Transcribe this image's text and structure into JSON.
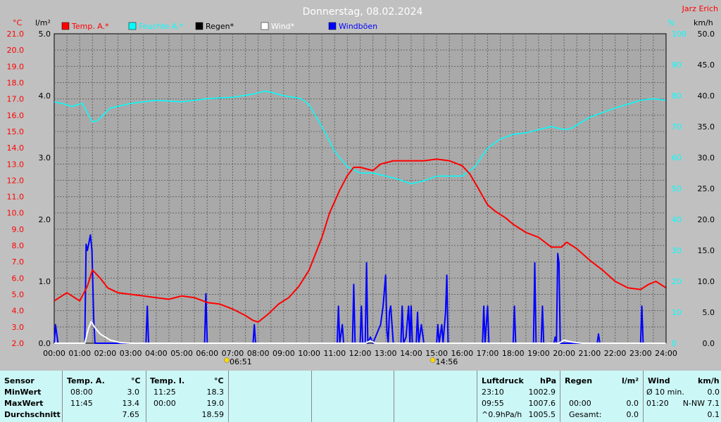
{
  "header": {
    "title": "Donnerstag, 08.02.2024",
    "author": "Jarz Erich"
  },
  "chart_data": {
    "type": "line",
    "title": "Donnerstag, 08.02.2024",
    "legend": [
      {
        "name": "Temp. A.*",
        "color": "#ff0000"
      },
      {
        "name": "Feuchte A.*",
        "color": "#00ffff"
      },
      {
        "name": "Regen*",
        "color": "#000000"
      },
      {
        "name": "Wind*",
        "color": "#ffffff"
      },
      {
        "name": "Windböen",
        "color": "#0000ff"
      }
    ],
    "axes": {
      "temp": {
        "unit": "°C",
        "min": 2,
        "max": 21,
        "ticks": [
          "21.0",
          "20.0",
          "19.0",
          "18.0",
          "17.0",
          "16.0",
          "15.0",
          "14.0",
          "13.0",
          "12.0",
          "11.0",
          "10.0",
          "9.0",
          "8.0",
          "7.0",
          "6.0",
          "5.0",
          "4.0",
          "3.0",
          "2.0"
        ],
        "color": "#ff0000"
      },
      "rain": {
        "unit": "l/m²",
        "min": 0,
        "max": 5,
        "ticks": [
          "5.0",
          "4.0",
          "3.0",
          "2.0",
          "1.0",
          "0.0"
        ]
      },
      "humidity": {
        "unit": "%",
        "min": 0,
        "max": 100,
        "ticks": [
          "100",
          "90",
          "80",
          "70",
          "60",
          "50",
          "40",
          "30",
          "20",
          "10",
          "0"
        ],
        "color": "#00ffff"
      },
      "wind": {
        "unit": "km/h",
        "min": 0,
        "max": 50,
        "ticks": [
          "50.0",
          "45.0",
          "40.0",
          "35.0",
          "30.0",
          "25.0",
          "20.0",
          "15.0",
          "10.0",
          "5.0",
          "0.0"
        ]
      },
      "x": {
        "min": 0,
        "max": 24,
        "ticks": [
          "00:00",
          "01:00",
          "02:00",
          "03:00",
          "04:00",
          "05:00",
          "06:00",
          "07:00",
          "08:00",
          "09:00",
          "10:00",
          "11:00",
          "12:00",
          "13:00",
          "14:00",
          "15:00",
          "16:00",
          "17:00",
          "18:00",
          "19:00",
          "20:00",
          "21:00",
          "22:00",
          "23:00",
          "24:00"
        ]
      }
    },
    "sunrise": {
      "label": "06:51",
      "hour": 6.85
    },
    "sunset": {
      "label": "14:56",
      "hour": 14.93
    },
    "grid": true,
    "series": {
      "temp": {
        "name": "Temp. A.*",
        "color": "#ff0000",
        "points": [
          [
            0,
            4.6
          ],
          [
            0.5,
            5.1
          ],
          [
            1.0,
            4.6
          ],
          [
            1.3,
            5.5
          ],
          [
            1.5,
            6.5
          ],
          [
            1.8,
            6.0
          ],
          [
            2.1,
            5.4
          ],
          [
            2.5,
            5.1
          ],
          [
            3.0,
            5.0
          ],
          [
            3.5,
            4.9
          ],
          [
            4.0,
            4.8
          ],
          [
            4.5,
            4.7
          ],
          [
            5.0,
            4.9
          ],
          [
            5.5,
            4.8
          ],
          [
            6.0,
            4.5
          ],
          [
            6.5,
            4.4
          ],
          [
            7.0,
            4.1
          ],
          [
            7.5,
            3.7
          ],
          [
            7.8,
            3.4
          ],
          [
            8.0,
            3.3
          ],
          [
            8.4,
            3.8
          ],
          [
            8.8,
            4.4
          ],
          [
            9.2,
            4.8
          ],
          [
            9.6,
            5.5
          ],
          [
            10.0,
            6.5
          ],
          [
            10.5,
            8.5
          ],
          [
            10.8,
            10.0
          ],
          [
            11.2,
            11.4
          ],
          [
            11.5,
            12.3
          ],
          [
            11.75,
            12.8
          ],
          [
            12.0,
            12.8
          ],
          [
            12.5,
            12.6
          ],
          [
            12.8,
            13.0
          ],
          [
            13.3,
            13.2
          ],
          [
            14.0,
            13.2
          ],
          [
            14.5,
            13.2
          ],
          [
            15.0,
            13.3
          ],
          [
            15.5,
            13.2
          ],
          [
            16.0,
            12.9
          ],
          [
            16.3,
            12.4
          ],
          [
            16.6,
            11.6
          ],
          [
            17.0,
            10.5
          ],
          [
            17.3,
            10.1
          ],
          [
            17.7,
            9.7
          ],
          [
            18.0,
            9.3
          ],
          [
            18.5,
            8.8
          ],
          [
            19.0,
            8.5
          ],
          [
            19.5,
            7.9
          ],
          [
            19.9,
            7.9
          ],
          [
            20.1,
            8.2
          ],
          [
            20.5,
            7.8
          ],
          [
            21.0,
            7.1
          ],
          [
            21.5,
            6.5
          ],
          [
            22.0,
            5.8
          ],
          [
            22.5,
            5.4
          ],
          [
            23.0,
            5.3
          ],
          [
            23.3,
            5.6
          ],
          [
            23.6,
            5.8
          ],
          [
            24.0,
            5.4
          ]
        ]
      },
      "humidity": {
        "name": "Feuchte A.*",
        "color": "#00ffff",
        "points": [
          [
            0,
            78
          ],
          [
            0.3,
            77.5
          ],
          [
            0.7,
            76.5
          ],
          [
            1.1,
            77.5
          ],
          [
            1.5,
            71.5
          ],
          [
            1.7,
            72
          ],
          [
            2.2,
            76
          ],
          [
            3.0,
            77.5
          ],
          [
            4.0,
            78.5
          ],
          [
            5.0,
            78
          ],
          [
            6.0,
            79
          ],
          [
            7.0,
            79.5
          ],
          [
            7.8,
            80.5
          ],
          [
            8.3,
            81.5
          ],
          [
            9.0,
            80
          ],
          [
            9.7,
            79
          ],
          [
            10.0,
            77
          ],
          [
            10.5,
            70
          ],
          [
            11.0,
            62
          ],
          [
            11.5,
            57
          ],
          [
            12.0,
            55
          ],
          [
            12.5,
            55
          ],
          [
            13.0,
            54
          ],
          [
            13.5,
            53
          ],
          [
            14.0,
            51.5
          ],
          [
            14.5,
            52.5
          ],
          [
            15.0,
            54
          ],
          [
            15.5,
            54
          ],
          [
            16.0,
            54
          ],
          [
            16.5,
            57
          ],
          [
            17.0,
            63
          ],
          [
            17.5,
            66
          ],
          [
            18.0,
            67.5
          ],
          [
            18.5,
            68
          ],
          [
            19.0,
            69
          ],
          [
            19.5,
            70
          ],
          [
            20.0,
            69
          ],
          [
            20.3,
            69.5
          ],
          [
            21.0,
            73
          ],
          [
            22.0,
            76
          ],
          [
            23.0,
            78.5
          ],
          [
            23.5,
            79
          ],
          [
            24.0,
            78.5
          ]
        ]
      },
      "wind": {
        "name": "Wind*",
        "color": "#ffffff",
        "points": [
          [
            0,
            0
          ],
          [
            1.2,
            0
          ],
          [
            1.35,
            2.5
          ],
          [
            1.45,
            3.5
          ],
          [
            1.6,
            2.5
          ],
          [
            1.8,
            1.5
          ],
          [
            2.2,
            0.5
          ],
          [
            2.6,
            0.1
          ],
          [
            3.0,
            0
          ],
          [
            12.2,
            0
          ],
          [
            12.4,
            0.4
          ],
          [
            12.6,
            0
          ],
          [
            19.8,
            0
          ],
          [
            20.0,
            0.5
          ],
          [
            20.3,
            0.2
          ],
          [
            20.7,
            0
          ],
          [
            24,
            0
          ]
        ]
      },
      "gust": {
        "name": "Windböen",
        "color": "#0000ff",
        "points": [
          [
            0,
            0
          ],
          [
            0.05,
            3
          ],
          [
            0.15,
            0
          ],
          [
            1.2,
            0
          ],
          [
            1.25,
            16
          ],
          [
            1.3,
            15
          ],
          [
            1.35,
            16
          ],
          [
            1.42,
            17.5
          ],
          [
            1.48,
            15
          ],
          [
            1.55,
            4
          ],
          [
            1.6,
            0
          ],
          [
            3.6,
            0
          ],
          [
            3.65,
            6
          ],
          [
            3.7,
            0
          ],
          [
            5.9,
            0
          ],
          [
            5.95,
            8
          ],
          [
            6.0,
            0
          ],
          [
            7.8,
            0
          ],
          [
            7.85,
            3
          ],
          [
            7.9,
            0
          ],
          [
            11.1,
            0
          ],
          [
            11.15,
            6
          ],
          [
            11.2,
            0
          ],
          [
            11.3,
            3
          ],
          [
            11.35,
            0
          ],
          [
            11.7,
            0
          ],
          [
            11.75,
            9.5
          ],
          [
            11.8,
            0
          ],
          [
            12.0,
            0
          ],
          [
            12.05,
            6
          ],
          [
            12.1,
            0
          ],
          [
            12.2,
            0
          ],
          [
            12.25,
            13
          ],
          [
            12.3,
            0
          ],
          [
            12.4,
            1
          ],
          [
            12.5,
            0
          ],
          [
            12.8,
            3
          ],
          [
            12.9,
            6
          ],
          [
            13.0,
            11
          ],
          [
            13.05,
            2
          ],
          [
            13.1,
            0
          ],
          [
            13.15,
            5
          ],
          [
            13.2,
            6
          ],
          [
            13.3,
            0
          ],
          [
            13.6,
            0
          ],
          [
            13.65,
            6
          ],
          [
            13.7,
            0
          ],
          [
            13.8,
            1
          ],
          [
            13.9,
            6
          ],
          [
            13.95,
            0
          ],
          [
            14.0,
            6
          ],
          [
            14.05,
            0
          ],
          [
            14.2,
            0
          ],
          [
            14.25,
            5
          ],
          [
            14.3,
            0
          ],
          [
            14.4,
            3
          ],
          [
            14.5,
            0
          ],
          [
            15.0,
            0
          ],
          [
            15.05,
            3
          ],
          [
            15.1,
            0
          ],
          [
            15.2,
            3
          ],
          [
            15.25,
            0
          ],
          [
            15.35,
            5
          ],
          [
            15.4,
            11
          ],
          [
            15.45,
            0
          ],
          [
            16.8,
            0
          ],
          [
            16.85,
            6
          ],
          [
            16.9,
            0
          ],
          [
            17.0,
            6
          ],
          [
            17.05,
            0
          ],
          [
            18.0,
            0
          ],
          [
            18.05,
            6
          ],
          [
            18.1,
            0
          ],
          [
            18.8,
            0
          ],
          [
            18.85,
            13
          ],
          [
            18.9,
            0
          ],
          [
            19.1,
            0
          ],
          [
            19.15,
            6
          ],
          [
            19.2,
            0
          ],
          [
            19.6,
            0
          ],
          [
            19.65,
            1
          ],
          [
            19.7,
            0
          ],
          [
            19.75,
            14.5
          ],
          [
            19.8,
            13
          ],
          [
            19.85,
            0
          ],
          [
            21.3,
            0
          ],
          [
            21.35,
            1.5
          ],
          [
            21.4,
            0
          ],
          [
            23.0,
            0
          ],
          [
            23.05,
            6
          ],
          [
            23.1,
            0
          ],
          [
            24,
            0
          ]
        ]
      },
      "rain": {
        "name": "Regen*",
        "color": "#000000",
        "points": [
          [
            0,
            0
          ],
          [
            24,
            0
          ]
        ]
      }
    }
  },
  "stats": {
    "headers": {
      "sensor": "Sensor",
      "temp_a": "Temp. A.",
      "temp_a_unit": "°C",
      "temp_i": "Temp. I.",
      "temp_i_unit": "°C",
      "pressure": "Luftdruck",
      "pressure_unit": "hPa",
      "rain": "Regen",
      "rain_unit": "l/m²",
      "wind": "Wind",
      "wind_unit": "km/h"
    },
    "rows": [
      {
        "label": "MinWert",
        "temp_a_time": "08:00",
        "temp_a_val": "3.0",
        "temp_i_time": "11:25",
        "temp_i_val": "18.3",
        "pressure_time": "23:10",
        "pressure_val": "1002.9",
        "rain_time": "",
        "rain_val": "",
        "wind_time": "Ø 10 min.",
        "wind_val": "0.0"
      },
      {
        "label": "MaxWert",
        "temp_a_time": "11:45",
        "temp_a_val": "13.4",
        "temp_i_time": "00:00",
        "temp_i_val": "19.0",
        "pressure_time": "09:55",
        "pressure_val": "1007.6",
        "rain_time": "00:00",
        "rain_val": "0.0",
        "wind_time": "01:20",
        "wind_val": "N-NW 7.1"
      },
      {
        "label": "Durchschnitt",
        "temp_a_time": "",
        "temp_a_val": "7.65",
        "temp_i_time": "",
        "temp_i_val": "18.59",
        "pressure_time": "^0.9hPa/h",
        "pressure_val": "1005.5",
        "rain_time": "Gesamt:",
        "rain_val": "0.0",
        "wind_time": "",
        "wind_val": "0.1"
      }
    ]
  }
}
